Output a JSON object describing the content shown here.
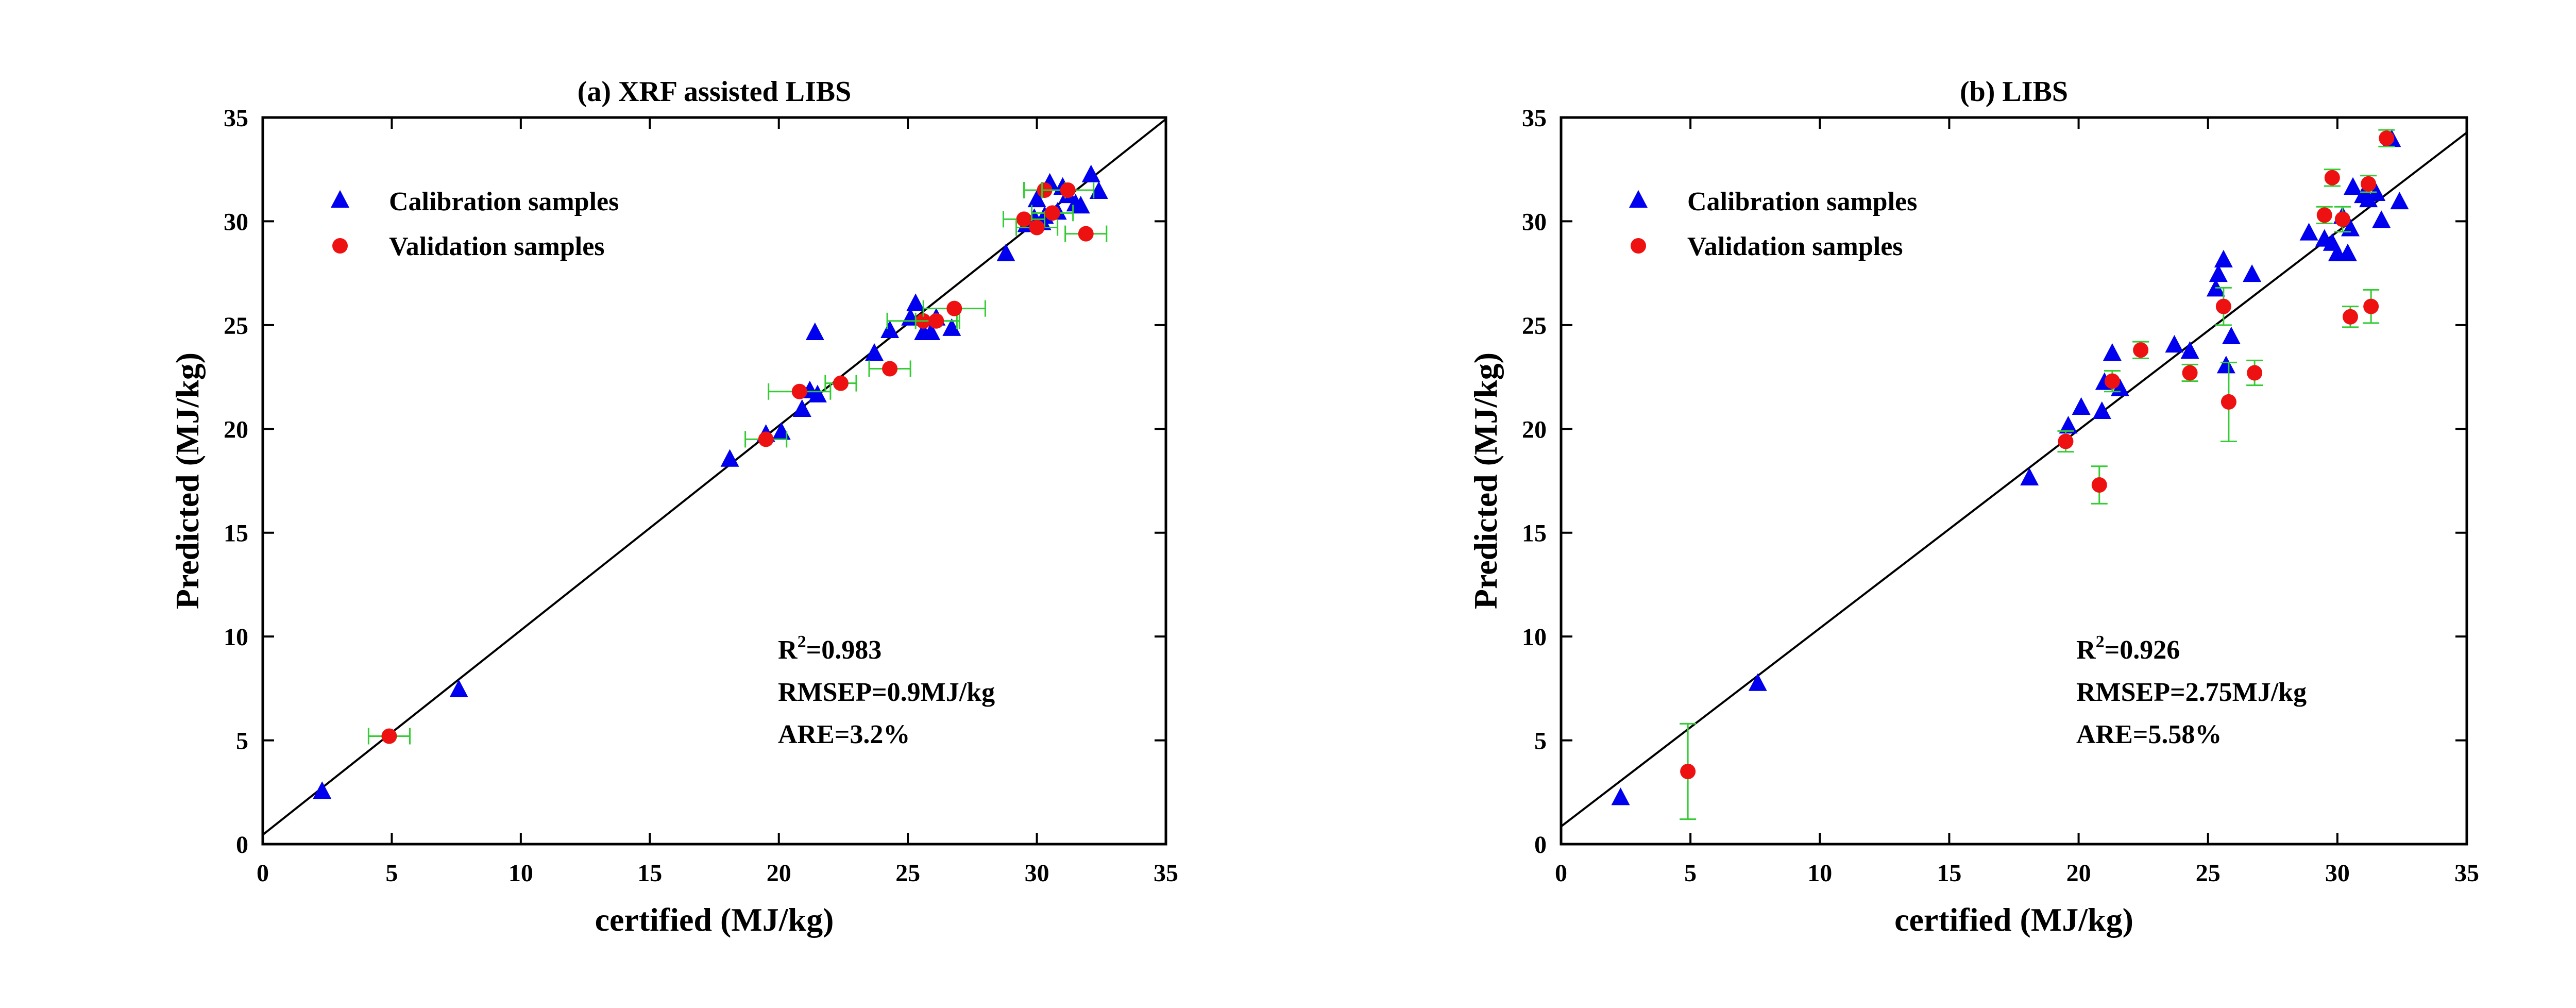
{
  "colors": {
    "calibration": "#0000ee",
    "validation": "#ee1111",
    "errorbar": "#33cc33",
    "line": "#000000"
  },
  "chart_data": [
    {
      "type": "scatter",
      "title": "(a)  XRF assisted LIBS",
      "xlabel": "certified (MJ/kg)",
      "ylabel": "Predicted (MJ/kg)",
      "xlim": [
        0,
        35
      ],
      "ylim": [
        0,
        35
      ],
      "xticks": [
        0,
        5,
        10,
        15,
        20,
        25,
        30,
        35
      ],
      "yticks": [
        0,
        5,
        10,
        15,
        20,
        25,
        30,
        35
      ],
      "grid": false,
      "legend_position": "top-left",
      "fit_line": {
        "slope": 0.985,
        "intercept": 0.45
      },
      "annotations": {
        "r2_prefix": "R",
        "r2_sup": "2",
        "r2_value": "=0.983",
        "rmsep": "RMSEP=0.9MJ/kg",
        "are": "ARE=3.2%"
      },
      "series": [
        {
          "name": "Calibration samples",
          "marker": "triangle",
          "points": [
            [
              2.3,
              2.5
            ],
            [
              7.6,
              7.4
            ],
            [
              18.1,
              18.5
            ],
            [
              19.5,
              19.7
            ],
            [
              20.1,
              19.8
            ],
            [
              20.9,
              20.9
            ],
            [
              21.2,
              21.8
            ],
            [
              21.5,
              21.6
            ],
            [
              21.4,
              24.6
            ],
            [
              23.7,
              23.6
            ],
            [
              24.3,
              24.7
            ],
            [
              25.1,
              25.3
            ],
            [
              25.3,
              26.0
            ],
            [
              25.6,
              24.6
            ],
            [
              25.9,
              24.6
            ],
            [
              26.1,
              25.3
            ],
            [
              26.7,
              24.8
            ],
            [
              28.8,
              28.4
            ],
            [
              29.6,
              29.8
            ],
            [
              29.9,
              30.1
            ],
            [
              30.0,
              31.0
            ],
            [
              30.2,
              29.9
            ],
            [
              30.3,
              30.2
            ],
            [
              30.5,
              31.8
            ],
            [
              30.8,
              30.4
            ],
            [
              31.0,
              31.6
            ],
            [
              31.2,
              31.2
            ],
            [
              31.5,
              30.8
            ],
            [
              31.7,
              30.7
            ],
            [
              32.1,
              32.2
            ],
            [
              32.4,
              31.4
            ]
          ]
        },
        {
          "name": "Validation samples",
          "marker": "circle",
          "points": [
            [
              4.9,
              5.2,
              0.8,
              0.0
            ],
            [
              19.5,
              19.5,
              0.8,
              0.0
            ],
            [
              20.8,
              21.8,
              1.2,
              0.0
            ],
            [
              22.4,
              22.2,
              0.6,
              0.0
            ],
            [
              24.3,
              22.9,
              0.8,
              0.0
            ],
            [
              25.6,
              25.2,
              1.4,
              0.0
            ],
            [
              26.1,
              25.2,
              0.8,
              0.0
            ],
            [
              26.8,
              25.8,
              1.2,
              0.0
            ],
            [
              29.5,
              30.1,
              0.8,
              0.0
            ],
            [
              30.0,
              29.7,
              0.8,
              0.0
            ],
            [
              30.3,
              31.5,
              0.8,
              0.0
            ],
            [
              30.6,
              30.4,
              0.8,
              0.0
            ],
            [
              31.2,
              31.5,
              1.0,
              0.0
            ],
            [
              31.9,
              29.4,
              0.8,
              0.0
            ]
          ]
        }
      ]
    },
    {
      "type": "scatter",
      "title": "(b)  LIBS",
      "xlabel": "certified (MJ/kg)",
      "ylabel": "Predicted (MJ/kg)",
      "xlim": [
        0,
        35
      ],
      "ylim": [
        0,
        35
      ],
      "xticks": [
        0,
        5,
        10,
        15,
        20,
        25,
        30,
        35
      ],
      "yticks": [
        0,
        5,
        10,
        15,
        20,
        25,
        30,
        35
      ],
      "grid": false,
      "legend_position": "top-left",
      "fit_line": {
        "slope": 0.955,
        "intercept": 0.85
      },
      "annotations": {
        "r2_prefix": "R",
        "r2_sup": "2",
        "r2_value": "=0.926",
        "rmsep": "RMSEP=2.75MJ/kg",
        "are": "ARE=5.58%"
      },
      "series": [
        {
          "name": "Calibration samples",
          "marker": "triangle",
          "points": [
            [
              2.3,
              2.2
            ],
            [
              7.6,
              7.7
            ],
            [
              18.1,
              17.6
            ],
            [
              19.6,
              20.1
            ],
            [
              20.1,
              21.0
            ],
            [
              20.9,
              20.8
            ],
            [
              21.0,
              22.2
            ],
            [
              21.3,
              23.6
            ],
            [
              21.6,
              21.9
            ],
            [
              23.7,
              24.0
            ],
            [
              24.3,
              23.7
            ],
            [
              25.3,
              26.7
            ],
            [
              25.4,
              27.4
            ],
            [
              25.6,
              28.1
            ],
            [
              25.7,
              23.0
            ],
            [
              25.9,
              24.4
            ],
            [
              26.7,
              27.4
            ],
            [
              28.9,
              29.4
            ],
            [
              29.5,
              29.1
            ],
            [
              29.8,
              28.9
            ],
            [
              30.0,
              28.4
            ],
            [
              30.2,
              30.2
            ],
            [
              30.4,
              28.4
            ],
            [
              30.5,
              29.6
            ],
            [
              30.6,
              31.6
            ],
            [
              31.0,
              31.2
            ],
            [
              31.2,
              31.0
            ],
            [
              31.5,
              31.3
            ],
            [
              31.7,
              30.0
            ],
            [
              32.1,
              33.9
            ],
            [
              32.4,
              30.9
            ]
          ]
        },
        {
          "name": "Validation samples",
          "marker": "circle",
          "points": [
            [
              4.9,
              3.5,
              0.0,
              2.3
            ],
            [
              19.5,
              19.4,
              0.0,
              0.5
            ],
            [
              20.8,
              17.3,
              0.0,
              0.9
            ],
            [
              21.3,
              22.3,
              0.0,
              0.5
            ],
            [
              22.4,
              23.8,
              0.0,
              0.4
            ],
            [
              24.3,
              22.7,
              0.0,
              0.4
            ],
            [
              25.6,
              25.9,
              0.0,
              0.9
            ],
            [
              25.8,
              21.3,
              0.0,
              1.9
            ],
            [
              26.8,
              22.7,
              0.0,
              0.6
            ],
            [
              29.5,
              30.3,
              0.0,
              0.4
            ],
            [
              29.8,
              32.1,
              0.0,
              0.4
            ],
            [
              30.2,
              30.1,
              0.0,
              0.6
            ],
            [
              30.5,
              25.4,
              0.0,
              0.5
            ],
            [
              31.2,
              31.8,
              0.0,
              0.4
            ],
            [
              31.3,
              25.9,
              0.0,
              0.8
            ],
            [
              31.9,
              34.0,
              0.0,
              0.4
            ]
          ]
        }
      ]
    }
  ]
}
